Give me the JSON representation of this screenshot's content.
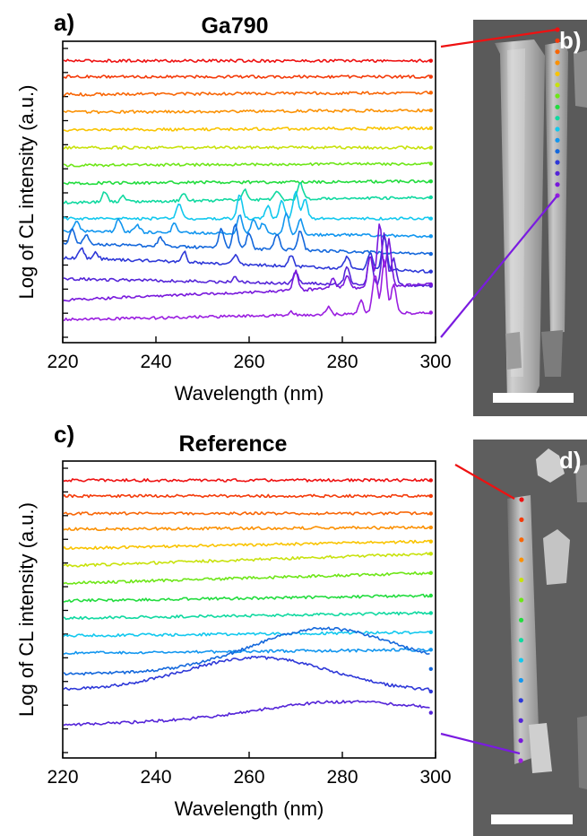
{
  "spectrum_colors": [
    "#ee1111",
    "#f43a0a",
    "#f86606",
    "#fb9104",
    "#f9c400",
    "#c8e20c",
    "#6ee618",
    "#22dc3e",
    "#10d9a0",
    "#12c8ee",
    "#1296ef",
    "#1468dc",
    "#2e38d8",
    "#5424d8",
    "#7818dc",
    "#9a1ee0"
  ],
  "panels": {
    "a": {
      "letter": "a)",
      "title": "Ga790"
    },
    "b": {
      "letter": "b)"
    },
    "c": {
      "letter": "c)",
      "title": "Reference"
    },
    "d": {
      "letter": "d)"
    }
  },
  "chart_data": [
    {
      "type": "line",
      "panel": "a",
      "title": "Ga790",
      "xlabel": "Wavelength (nm)",
      "ylabel": "Log of CL intensity (a.u.)",
      "xlim": [
        220,
        300
      ],
      "xticks": [
        "220",
        "240",
        "260",
        "280",
        "300"
      ],
      "y_tick_count": 13,
      "grid": false,
      "series": [
        {
          "index": 1,
          "baseline": [
            15.9,
            15.9
          ]
        },
        {
          "index": 2,
          "baseline": [
            15.0,
            15.0
          ]
        },
        {
          "index": 3,
          "baseline": [
            14.0,
            14.1
          ]
        },
        {
          "index": 4,
          "baseline": [
            13.0,
            13.1
          ]
        },
        {
          "index": 5,
          "baseline": [
            12.0,
            12.1
          ]
        },
        {
          "index": 6,
          "baseline": [
            11.0,
            11.0
          ]
        },
        {
          "index": 7,
          "baseline": [
            10.0,
            10.1
          ]
        },
        {
          "index": 8,
          "baseline": [
            9.0,
            9.1
          ]
        },
        {
          "index": 9,
          "baseline": [
            7.9,
            8.2
          ],
          "peaks": [
            [
              229,
              0.6
            ],
            [
              233,
              0.3
            ],
            [
              246,
              0.4
            ],
            [
              259,
              0.6
            ],
            [
              266,
              0.5
            ],
            [
              271,
              0.9
            ]
          ]
        },
        {
          "index": 10,
          "baseline": [
            7.0,
            7.0
          ],
          "peaks": [
            [
              245,
              0.9
            ],
            [
              258,
              1.4
            ],
            [
              264,
              0.7
            ],
            [
              267,
              1.0
            ],
            [
              270,
              1.6
            ],
            [
              272,
              1.1
            ]
          ]
        },
        {
          "index": 11,
          "baseline": [
            6.3,
            6.0
          ],
          "peaks": [
            [
              223,
              0.5
            ],
            [
              232,
              0.7
            ],
            [
              236,
              0.4
            ],
            [
              244,
              0.5
            ],
            [
              258,
              1.0
            ],
            [
              261,
              0.8
            ],
            [
              263,
              0.6
            ],
            [
              268,
              1.2
            ],
            [
              271,
              0.9
            ]
          ]
        },
        {
          "index": 12,
          "baseline": [
            5.6,
            5.0
          ],
          "peaks": [
            [
              222,
              0.8
            ],
            [
              225,
              0.5
            ],
            [
              241,
              0.5
            ],
            [
              254,
              1.1
            ],
            [
              257,
              1.3
            ],
            [
              260,
              0.9
            ],
            [
              266,
              0.9
            ],
            [
              271,
              1.1
            ]
          ]
        },
        {
          "index": 13,
          "baseline": [
            4.8,
            4.0
          ],
          "peaks": [
            [
              224,
              0.6
            ],
            [
              227,
              0.4
            ],
            [
              246,
              0.6
            ],
            [
              257,
              0.5
            ],
            [
              269,
              0.6
            ],
            [
              281,
              0.7
            ],
            [
              286,
              0.9
            ],
            [
              289,
              1.9
            ]
          ]
        },
        {
          "index": 14,
          "baseline": [
            3.6,
            3.2
          ],
          "peaks": [
            [
              257,
              0.3
            ],
            [
              270,
              0.6
            ],
            [
              281,
              1.0
            ],
            [
              286,
              1.6
            ],
            [
              289,
              3.0
            ],
            [
              291,
              1.5
            ]
          ]
        },
        {
          "index": 15,
          "baseline": [
            2.4,
            3.3
          ],
          "peaks": [
            [
              270,
              1.1
            ],
            [
              278,
              0.6
            ],
            [
              281,
              0.7
            ],
            [
              286,
              1.8
            ],
            [
              288,
              3.5
            ],
            [
              290,
              2.6
            ]
          ]
        },
        {
          "index": 16,
          "baseline": [
            1.3,
            1.7
          ],
          "peaks": [
            [
              269,
              0.2
            ],
            [
              277,
              0.4
            ],
            [
              284,
              0.8
            ],
            [
              287,
              2.2
            ],
            [
              289,
              3.1
            ],
            [
              291,
              1.6
            ]
          ]
        }
      ]
    },
    {
      "type": "line",
      "panel": "c",
      "title": "Reference",
      "xlabel": "Wavelength (nm)",
      "ylabel": "Log of CL intensity (a.u.)",
      "xlim": [
        220,
        300
      ],
      "xticks": [
        "220",
        "240",
        "260",
        "280",
        "300"
      ],
      "y_tick_count": 13,
      "grid": false,
      "series": [
        {
          "index": 1,
          "baseline": [
            15.9,
            15.9
          ]
        },
        {
          "index": 2,
          "baseline": [
            15.0,
            15.0
          ]
        },
        {
          "index": 3,
          "baseline": [
            14.0,
            14.0
          ]
        },
        {
          "index": 4,
          "baseline": [
            13.1,
            13.2
          ]
        },
        {
          "index": 5,
          "baseline": [
            12.0,
            12.4
          ]
        },
        {
          "index": 6,
          "baseline": [
            11.0,
            11.7
          ]
        },
        {
          "index": 7,
          "baseline": [
            10.0,
            10.6
          ]
        },
        {
          "index": 8,
          "baseline": [
            9.0,
            9.3
          ]
        },
        {
          "index": 9,
          "baseline": [
            8.0,
            8.3
          ]
        },
        {
          "index": 10,
          "baseline": [
            7.0,
            7.2
          ]
        },
        {
          "index": 11,
          "baseline": [
            6.0,
            6.2
          ]
        },
        {
          "index": 12,
          "baseline": [
            4.8,
            5.1
          ],
          "bump": [
            276,
            2.4
          ]
        },
        {
          "index": 13,
          "baseline": [
            3.9,
            3.8
          ],
          "bump": [
            262,
            1.9
          ]
        },
        {
          "index": 14,
          "baseline": [
            1.9,
            2.6
          ],
          "bump": [
            278,
            0.8
          ]
        }
      ]
    }
  ],
  "sem_images": [
    {
      "panel": "b",
      "points": 16
    },
    {
      "panel": "d",
      "points": 14
    }
  ]
}
